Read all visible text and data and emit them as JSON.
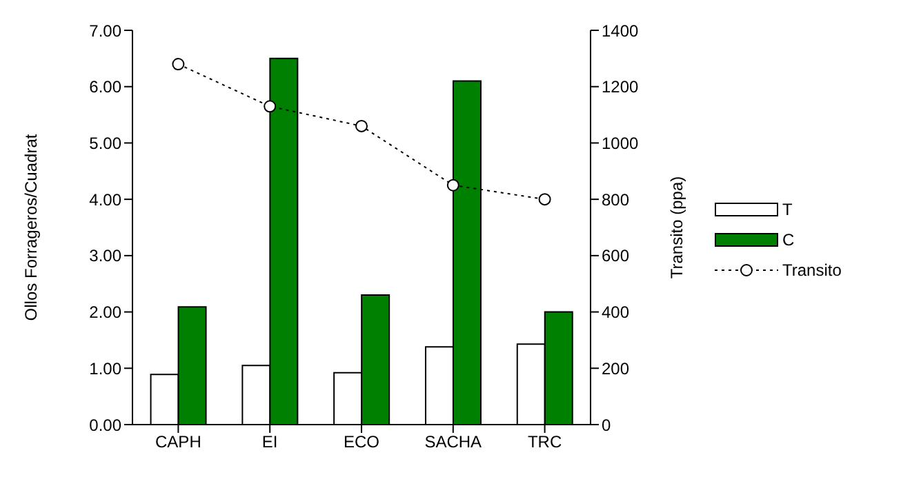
{
  "chart_data": {
    "type": "bar",
    "ylabel": "Ollos Forrageros/Cuadrat",
    "y2label": "Transito (ppa)",
    "categories": [
      "CAPH",
      "EI",
      "ECO",
      "SACHA",
      "TRC"
    ],
    "series": [
      {
        "name": "T",
        "color": "#ffffff",
        "values": [
          0.89,
          1.05,
          0.92,
          1.38,
          1.43
        ]
      },
      {
        "name": "C",
        "color": "#008000",
        "values": [
          2.09,
          6.5,
          2.3,
          6.1,
          2.0
        ]
      },
      {
        "name": "Transito",
        "type": "line",
        "axis": "y2",
        "color": "#000000",
        "marker": "circle",
        "line_style": "dotted",
        "values": [
          1280,
          1130,
          1060,
          850,
          800
        ]
      }
    ],
    "ylim": [
      0,
      7
    ],
    "yticks": [
      {
        "value": 0,
        "label": "0.00"
      },
      {
        "value": 1,
        "label": "1.00"
      },
      {
        "value": 2,
        "label": "2.00"
      },
      {
        "value": 3,
        "label": "3.00"
      },
      {
        "value": 4,
        "label": "4.00"
      },
      {
        "value": 5,
        "label": "5.00"
      },
      {
        "value": 6,
        "label": "6.00"
      },
      {
        "value": 7,
        "label": "7.00"
      }
    ],
    "y2lim": [
      0,
      1400
    ],
    "y2ticks": [
      0,
      200,
      400,
      600,
      800,
      1000,
      1200,
      1400
    ],
    "grid": false,
    "legend": "right"
  }
}
